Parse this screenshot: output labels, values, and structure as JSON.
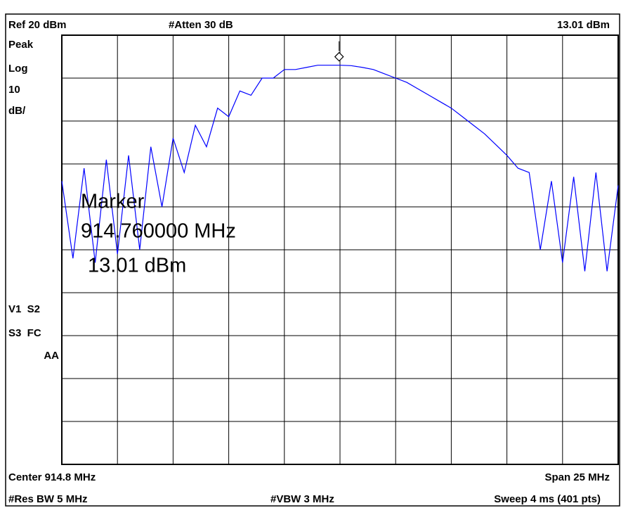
{
  "chart_data": {
    "type": "line",
    "header": {
      "ref": "Ref 20 dBm",
      "atten": "#Atten 30 dB",
      "marker_readout": "13.01 dBm"
    },
    "side_labels": [
      "Peak",
      "Log",
      "10",
      "dB/"
    ],
    "status_labels": [
      "V1  S2",
      "S3  FC",
      "AA"
    ],
    "footer": {
      "center": "Center 914.8 MHz",
      "span": "Span 25 MHz",
      "rbw": "#Res BW 5 MHz",
      "vbw": "#VBW 3 MHz",
      "sweep": "Sweep 4 ms (401 pts)"
    },
    "marker": {
      "title": "Marker",
      "frequency": "914.760000 MHz",
      "amplitude": "13.01 dBm",
      "x": 914.76,
      "y": 13.01
    },
    "xlim": [
      902.3,
      927.3
    ],
    "ylim": [
      -80,
      20
    ],
    "xticks": [
      902.3,
      904.8,
      907.3,
      909.8,
      912.3,
      914.8,
      917.3,
      919.8,
      922.3,
      924.8,
      927.3
    ],
    "yticks": [
      20,
      10,
      0,
      -10,
      -20,
      -30,
      -40,
      -50,
      -60,
      -70,
      -80
    ],
    "grid": true,
    "series": [
      {
        "color": "#0000ff",
        "x": [
          902.3,
          902.8,
          903.3,
          903.8,
          904.3,
          904.8,
          905.3,
          905.8,
          906.3,
          906.8,
          907.3,
          907.8,
          908.3,
          908.8,
          909.3,
          909.8,
          910.3,
          910.8,
          911.3,
          911.8,
          912.3,
          912.8,
          913.3,
          913.8,
          914.3,
          914.8,
          915.3,
          915.8,
          916.3,
          916.8,
          917.3,
          917.8,
          918.3,
          918.8,
          919.3,
          919.8,
          920.3,
          920.8,
          921.3,
          921.8,
          922.3,
          922.8,
          923.3,
          923.8,
          924.3,
          924.8,
          925.3,
          925.8,
          926.3,
          926.8,
          927.3
        ],
        "values": [
          -14,
          -32,
          -11,
          -33,
          -9,
          -31,
          -8,
          -30,
          -6,
          -20,
          -4,
          -12,
          -1,
          -6,
          3,
          1,
          7,
          6,
          10,
          10,
          12,
          12,
          12.5,
          13,
          13,
          13,
          12.9,
          12.5,
          12,
          11,
          10,
          9,
          7.5,
          6,
          4.5,
          3,
          1,
          -1,
          -3,
          -5.5,
          -8,
          -11,
          -12,
          -30,
          -14,
          -33,
          -13,
          -35,
          -12,
          -35,
          -15
        ]
      }
    ]
  }
}
